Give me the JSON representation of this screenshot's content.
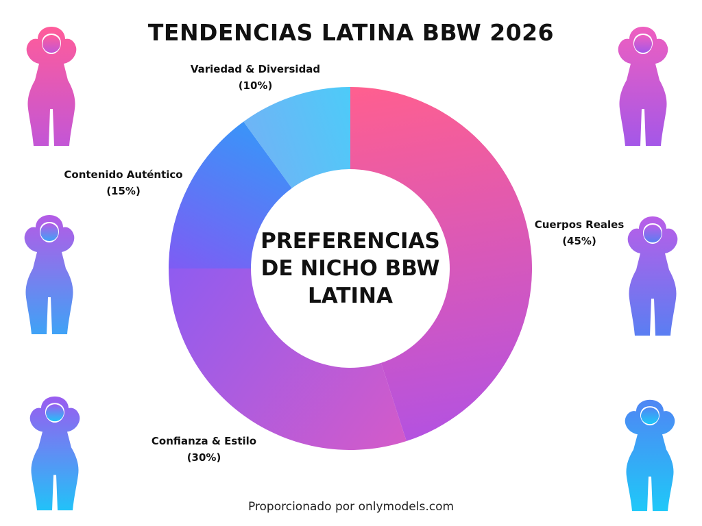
{
  "title": "TENDENCIAS LATINA BBW 2026",
  "footer": "Proporcionado por onlymodels.com",
  "chart_data": {
    "type": "pie",
    "donut": true,
    "center_label": "PREFERENCIAS DE NICHO BBW LATINA",
    "start": "top",
    "direction": "clockwise",
    "slices": [
      {
        "label": "Cuerpos Reales",
        "value": 45,
        "value_label": "(45%)",
        "colors": [
          "#ff5f8f",
          "#b452e0"
        ]
      },
      {
        "label": "Confianza & Estilo",
        "value": 30,
        "value_label": "(30%)",
        "colors": [
          "#d35bc9",
          "#8f5cf0"
        ]
      },
      {
        "label": "Contenido Auténtico",
        "value": 15,
        "value_label": "(15%)",
        "colors": [
          "#7e5cf4",
          "#3a94f8"
        ]
      },
      {
        "label": "Variedad & Diversidad",
        "value": 10,
        "value_label": "(10%)",
        "colors": [
          "#6fb4f6",
          "#4dcbf8"
        ]
      }
    ]
  },
  "decorations": {
    "figure_icon": "woman-silhouette-icon",
    "figure_colors": [
      [
        "#ff5c9a",
        "#c356d6"
      ],
      [
        "#ee5fc0",
        "#a457e8"
      ],
      [
        "#b45be6",
        "#3fa2f6"
      ],
      [
        "#b95ee8",
        "#5a7ef2"
      ],
      [
        "#9a5cf0",
        "#22c2f8"
      ],
      [
        "#4f86f4",
        "#1fc8f8"
      ]
    ]
  }
}
